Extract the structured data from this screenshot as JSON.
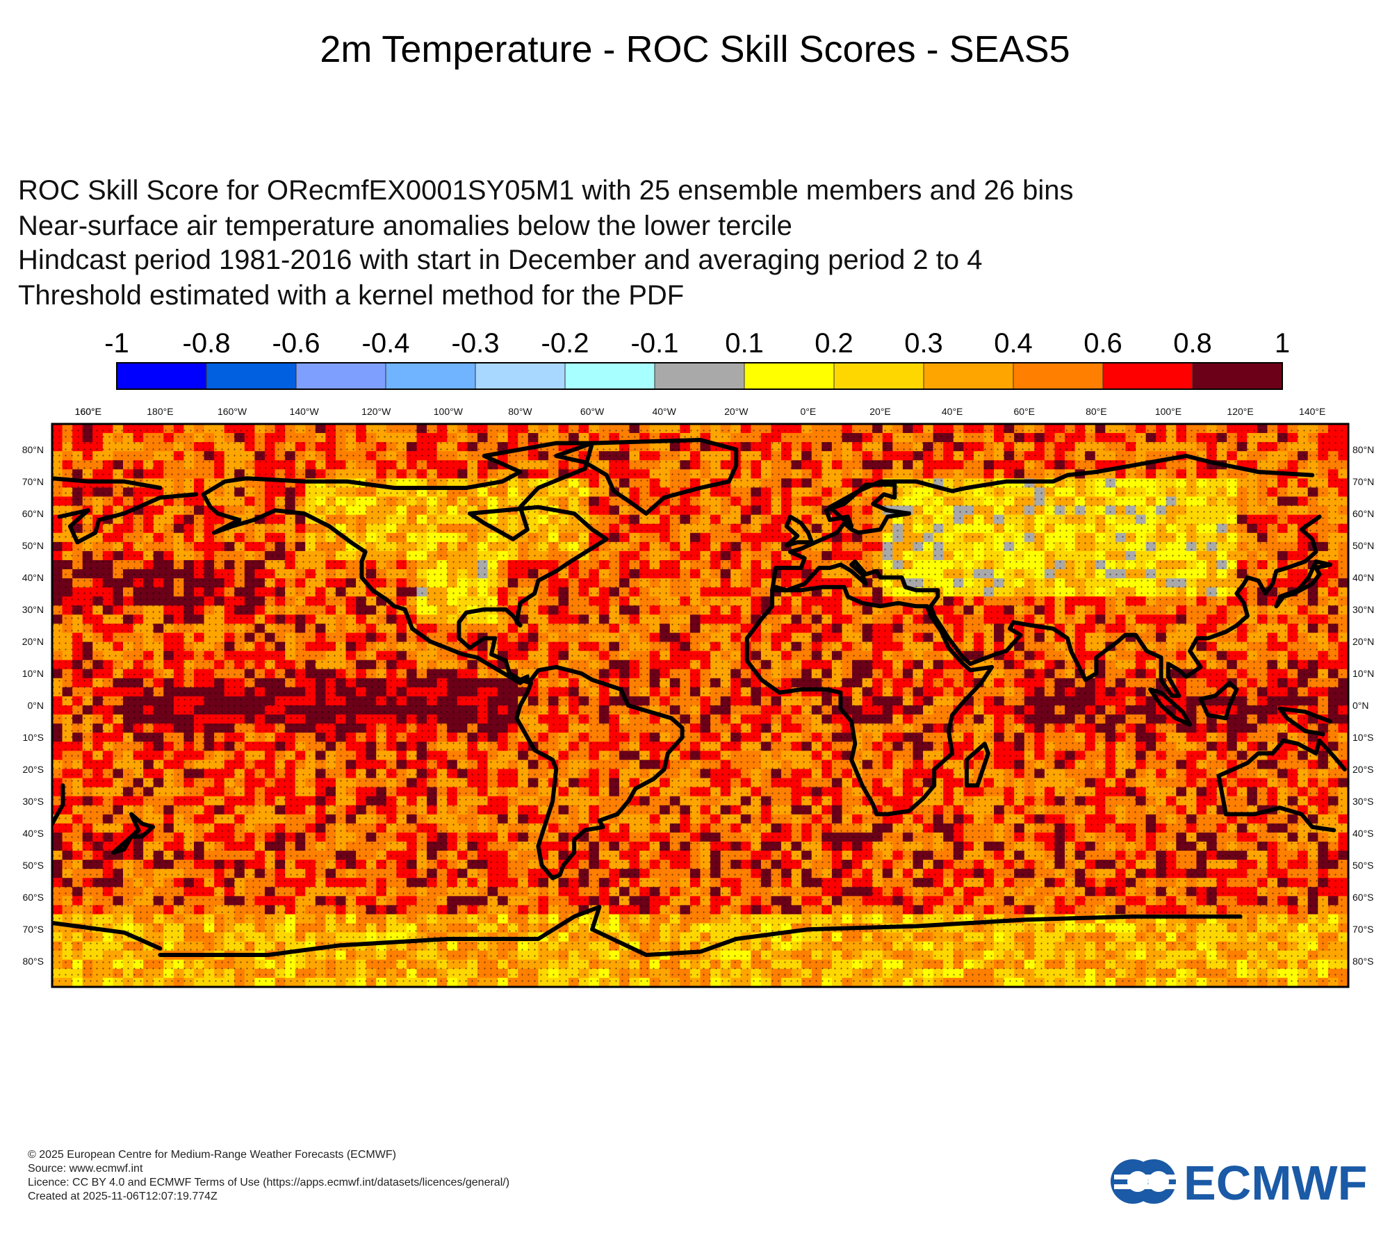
{
  "title": "2m Temperature - ROC Skill Scores - SEAS5",
  "subtitle_lines": [
    "ROC Skill Score for ORecmfEX0001SY05M1 with 25 ensemble members and 26 bins",
    "Near-surface air temperature anomalies below the lower tercile",
    "Hindcast period 1981-2016 with start in December and averaging period  2 to  4",
    "Threshold estimated with a kernel method for the PDF"
  ],
  "colorbar": {
    "labels": [
      "-1",
      "-0.8",
      "-0.6",
      "-0.4",
      "-0.3",
      "-0.2",
      "-0.1",
      "0.1",
      "0.2",
      "0.3",
      "0.4",
      "0.6",
      "0.8",
      "1"
    ],
    "colors": [
      "#0000ff",
      "#0060e0",
      "#7f9fff",
      "#70b4ff",
      "#a8d8ff",
      "#a8ffff",
      "#a9a9a9",
      "#ffff00",
      "#ffd700",
      "#ffa500",
      "#ff7f00",
      "#ff0000",
      "#6b0018"
    ]
  },
  "map": {
    "lon_labels": [
      "160°E",
      "180°E",
      "160°W",
      "140°W",
      "120°W",
      "100°W",
      "80°W",
      "60°W",
      "40°W",
      "20°W",
      "0°E",
      "20°E",
      "40°E",
      "60°E",
      "80°E",
      "100°E",
      "120°E",
      "140°E",
      "160°E"
    ],
    "lat_labels": [
      "80°N",
      "70°N",
      "60°N",
      "50°N",
      "40°N",
      "30°N",
      "20°N",
      "10°N",
      "0°N",
      "10°S",
      "20°S",
      "30°S",
      "40°S",
      "50°S",
      "60°S",
      "70°S",
      "80°S"
    ]
  },
  "footer": [
    "© 2025 European Centre for Medium-Range Weather Forecasts (ECMWF)",
    "Source: www.ecmwf.int",
    "Licence: CC BY 4.0 and ECMWF Terms of Use (https://apps.ecmwf.int/datasets/licences/general/)",
    "Created at 2025-11-06T12:07:19.774Z"
  ],
  "logo_text": "ECMWF",
  "brand_color": "#1a5aa6"
}
